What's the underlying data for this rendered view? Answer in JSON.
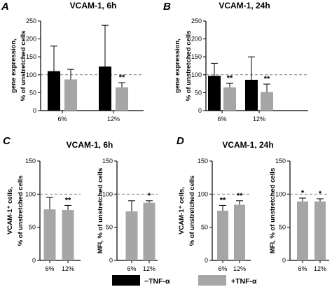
{
  "colors": {
    "neg": "#000000",
    "pos": "#a6a6a6",
    "axis": "#000000",
    "ref": "#808080"
  },
  "legend": {
    "neg_label": "−TNF-α",
    "pos_label": "+TNF-α"
  },
  "chart_data": [
    {
      "type": "bar",
      "panel": "A",
      "title": "VCAM-1, 6h",
      "ylabel_lines": [
        "gene expression,",
        "% of unstretched cells"
      ],
      "categories": [
        "6%",
        "12%"
      ],
      "ylim": [
        0,
        250
      ],
      "yticks": [
        0,
        50,
        100,
        150,
        200,
        250
      ],
      "reference_line": 100,
      "series": [
        {
          "name": "−TNF-α",
          "key": "neg",
          "values": [
            110,
            123
          ],
          "errors": [
            70,
            115
          ],
          "sig": [
            "",
            ""
          ]
        },
        {
          "name": "+TNF-α",
          "key": "pos",
          "values": [
            87,
            65
          ],
          "errors": [
            28,
            13
          ],
          "sig": [
            "",
            "**"
          ]
        }
      ]
    },
    {
      "type": "bar",
      "panel": "B",
      "title": "VCAM-1, 24h",
      "ylabel_lines": [
        "gene expression,",
        "% of unstretched cells"
      ],
      "categories": [
        "6%",
        "12%"
      ],
      "ylim": [
        0,
        250
      ],
      "yticks": [
        0,
        50,
        100,
        150,
        200,
        250
      ],
      "reference_line": 100,
      "series": [
        {
          "name": "−TNF-α",
          "key": "neg",
          "values": [
            97,
            86
          ],
          "errors": [
            35,
            64
          ],
          "sig": [
            "",
            ""
          ]
        },
        {
          "name": "+TNF-α",
          "key": "pos",
          "values": [
            65,
            52
          ],
          "errors": [
            11,
            22
          ],
          "sig": [
            "**",
            "**"
          ]
        }
      ]
    },
    {
      "type": "bar",
      "panel": "C",
      "title": "VCAM-1, 6h",
      "ylabel_lines": [
        "VCAM-1⁺ cells,",
        "% of unstretched cells"
      ],
      "categories": [
        "6%",
        "12%"
      ],
      "ylim": [
        0,
        150
      ],
      "yticks": [
        0,
        50,
        100,
        150
      ],
      "reference_line": 100,
      "series": [
        {
          "name": "+TNF-α",
          "key": "pos",
          "values": [
            77,
            76
          ],
          "errors": [
            18,
            7
          ],
          "sig": [
            "",
            "**"
          ]
        }
      ]
    },
    {
      "type": "bar",
      "panel": "",
      "title": "",
      "ylabel_lines": [
        "MFI, % of unstretched cells"
      ],
      "categories": [
        "6%",
        "12%"
      ],
      "ylim": [
        0,
        150
      ],
      "yticks": [
        0,
        50,
        100,
        150
      ],
      "reference_line": 100,
      "series": [
        {
          "name": "+TNF-α",
          "key": "pos",
          "values": [
            74,
            87
          ],
          "errors": [
            16,
            3
          ],
          "sig": [
            "",
            "*"
          ]
        }
      ]
    },
    {
      "type": "bar",
      "panel": "D",
      "title": "VCAM-1, 24h",
      "ylabel_lines": [
        "VCAM-1⁺ cells,",
        "% of unstretched cells"
      ],
      "categories": [
        "6%",
        "12%"
      ],
      "ylim": [
        0,
        150
      ],
      "yticks": [
        0,
        50,
        100,
        150
      ],
      "reference_line": 100,
      "series": [
        {
          "name": "+TNF-α",
          "key": "pos",
          "values": [
            75,
            84
          ],
          "errors": [
            8,
            6
          ],
          "sig": [
            "**",
            "**"
          ]
        }
      ]
    },
    {
      "type": "bar",
      "panel": "",
      "title": "",
      "ylabel_lines": [
        "MFI, % of unstretched cells"
      ],
      "categories": [
        "6%",
        "12%"
      ],
      "ylim": [
        0,
        150
      ],
      "yticks": [
        0,
        50,
        100,
        150
      ],
      "reference_line": 100,
      "series": [
        {
          "name": "+TNF-α",
          "key": "pos",
          "values": [
            89,
            89
          ],
          "errors": [
            5,
            4
          ],
          "sig": [
            "*",
            "*"
          ]
        }
      ]
    }
  ]
}
